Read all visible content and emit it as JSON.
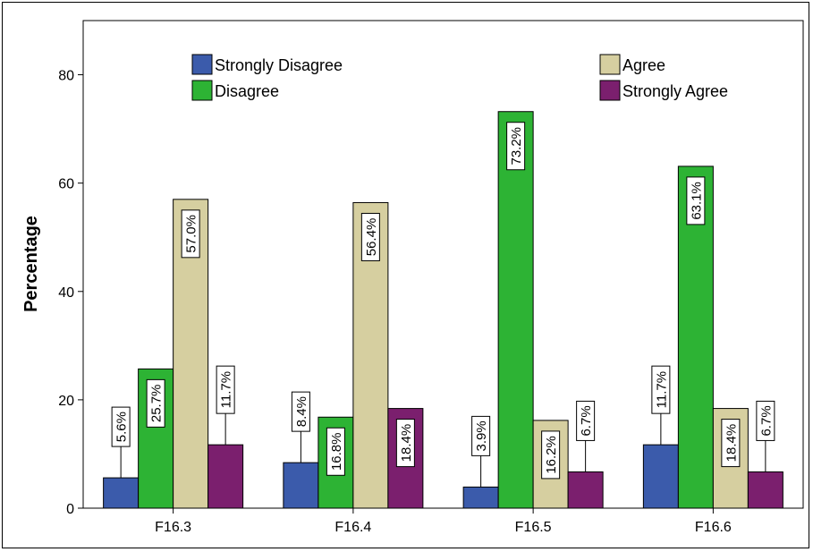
{
  "chart_data": {
    "type": "bar",
    "categories": [
      "F16.3",
      "F16.4",
      "F16.5",
      "F16.6"
    ],
    "series": [
      {
        "name": "Strongly Disagree",
        "color": "#3b5bab",
        "values": [
          5.6,
          8.4,
          3.9,
          11.7
        ],
        "labels": [
          "5.6%",
          "8.4%",
          "3.9%",
          "11.7%"
        ]
      },
      {
        "name": "Disagree",
        "color": "#2db334",
        "values": [
          25.7,
          16.8,
          73.2,
          63.1
        ],
        "labels": [
          "25.7%",
          "16.8%",
          "73.2%",
          "63.1%"
        ]
      },
      {
        "name": "Agree",
        "color": "#d6cfa0",
        "values": [
          57.0,
          56.4,
          16.2,
          18.4
        ],
        "labels": [
          "57.0%",
          "56.4%",
          "16.2%",
          "18.4%"
        ]
      },
      {
        "name": "Strongly Agree",
        "color": "#7b1f6e",
        "values": [
          11.7,
          18.4,
          6.7,
          6.7
        ],
        "labels": [
          "11.7%",
          "18.4%",
          "6.7%",
          "6.7%"
        ]
      }
    ],
    "ylabel": "Percentage",
    "xlabel": "",
    "ylim": [
      0,
      90
    ],
    "yticks": [
      0,
      20,
      40,
      60,
      80
    ],
    "grid": false,
    "legend_position": "top"
  }
}
